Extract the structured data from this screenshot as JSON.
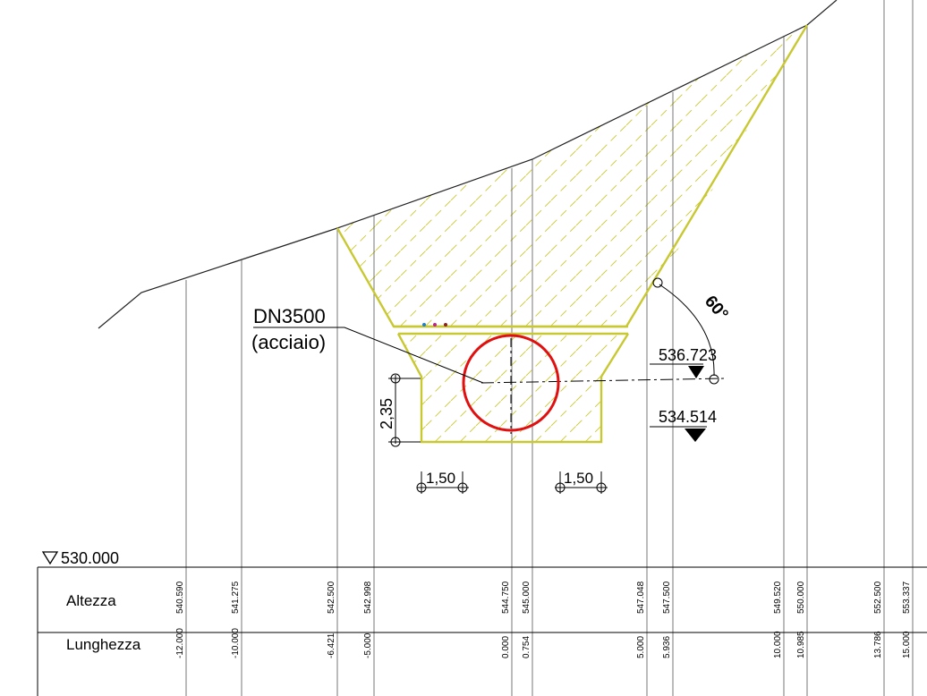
{
  "pipe": {
    "label_line1": "DN3500",
    "label_line2": "(acciaio)"
  },
  "dimensions": {
    "angle": "60°",
    "height": "2,35",
    "berm_left": "1,50",
    "berm_right": "1,50"
  },
  "levels": {
    "upper": "536.723",
    "lower": "534.514",
    "datum": "530.000"
  },
  "table": {
    "altezza_label": "Altezza",
    "lunghezza_label": "Lunghezza",
    "altezza_values": [
      "540.590",
      "541.275",
      "542.500",
      "542.998",
      "544.750",
      "545.000",
      "547.048",
      "547.500",
      "549.520",
      "550.000",
      "552.500",
      "553.337"
    ],
    "lunghezza_values": [
      "-12.000",
      "-10.000",
      "-6.421",
      "-5.000",
      "0.000",
      "0.754",
      "5.000",
      "5.936",
      "10.000",
      "10.985",
      "13.786",
      "15.000"
    ]
  },
  "colors": {
    "trench": "#c8c832",
    "pipe": "#e01010",
    "lines": "#000000"
  }
}
